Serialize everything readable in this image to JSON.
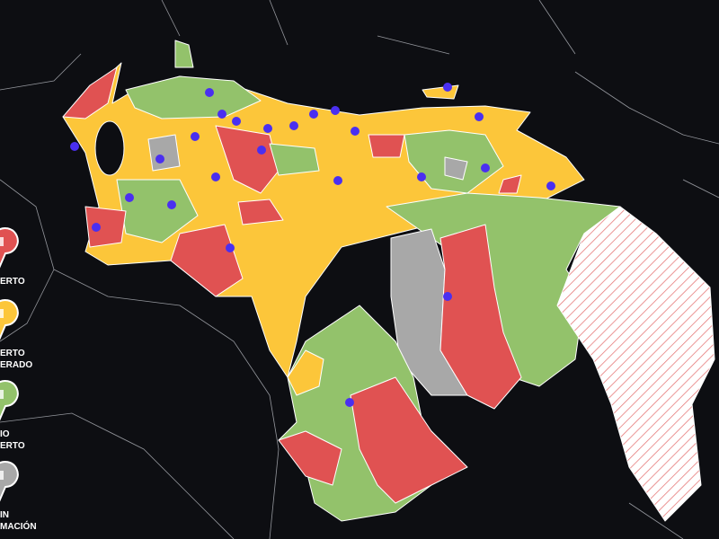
{
  "legend": {
    "items": [
      {
        "lines": [
          "ERTO"
        ],
        "color": "#e05252"
      },
      {
        "lines": [
          "ERTO",
          "ERADO"
        ],
        "color": "#fcc63a"
      },
      {
        "lines": [
          "IO",
          "ERTO"
        ],
        "color": "#93c26b"
      },
      {
        "lines": [
          "IN",
          "MACIÓN"
        ],
        "color": "#a8a8a8"
      }
    ]
  }
}
